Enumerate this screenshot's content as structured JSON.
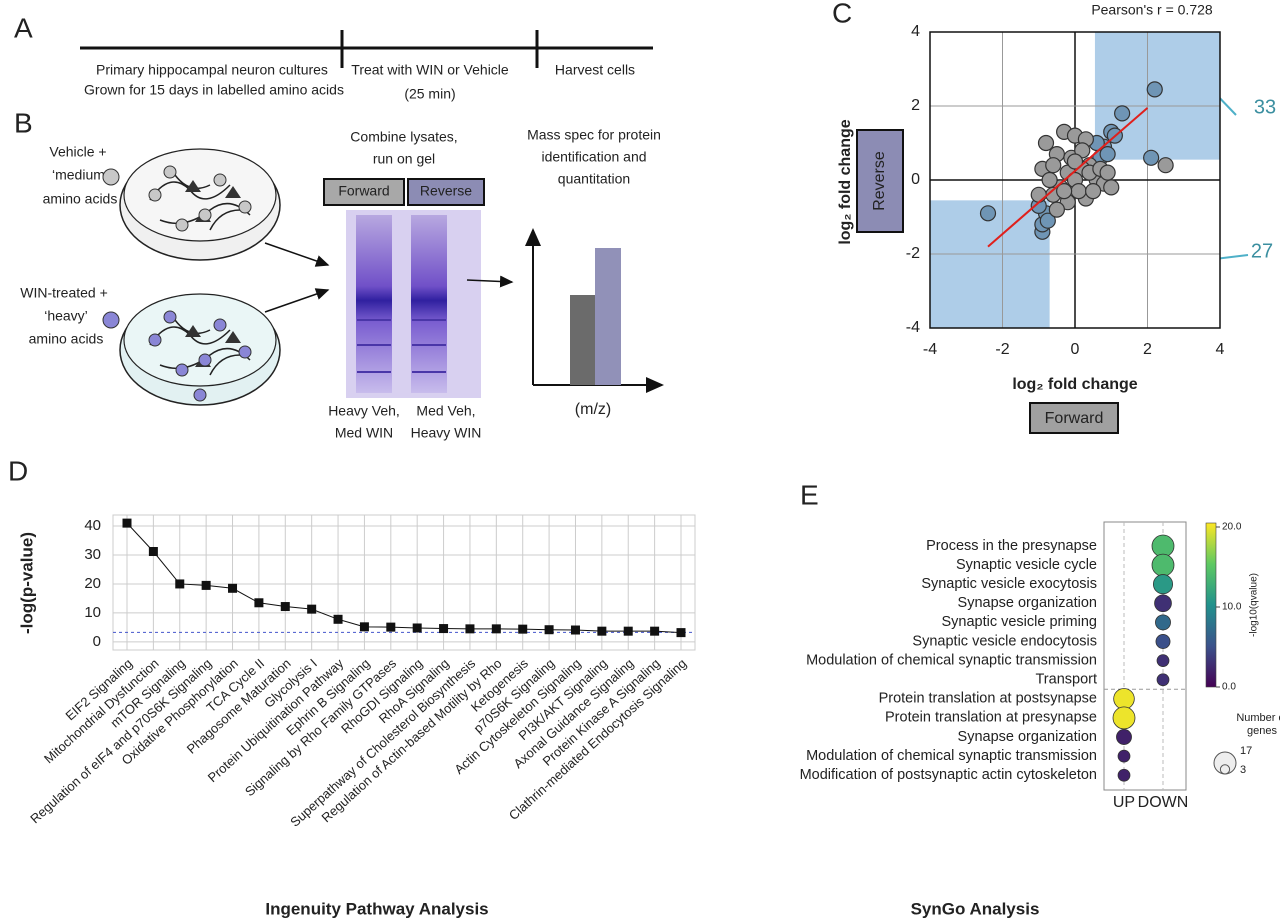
{
  "panel_labels": [
    "A",
    "B",
    "C",
    "D",
    "E"
  ],
  "panel_a": {
    "steps": [
      [
        "Primary hippocampal neuron cultures",
        "Grown for 15 days in labelled amino acids"
      ],
      [
        "Treat with WIN or Vehicle",
        "(25 min)"
      ],
      [
        "Harvest cells"
      ]
    ]
  },
  "panel_b": {
    "vehicle": [
      "Vehicle +",
      "‘medium’",
      "amino acids"
    ],
    "win": [
      "WIN-treated +",
      "‘heavy’",
      "amino acids"
    ],
    "combine": [
      "Combine lysates,",
      "run on gel"
    ],
    "forward": "Forward",
    "reverse": "Reverse",
    "mass_spec": [
      "Mass spec for protein",
      "identification and",
      "quantitation"
    ],
    "mz": "(m/z)",
    "lane1": [
      "Heavy Veh,",
      "Med WIN"
    ],
    "lane2": [
      "Med Veh,",
      "Heavy WIN"
    ]
  },
  "chart_data": [
    {
      "type": "scatter",
      "annotation": "Pearson's r = 0.728",
      "x": [
        2.2,
        1.3,
        2.1,
        2.5,
        1.0,
        0.8,
        1.1,
        0.7,
        0.6,
        0.9,
        -2.4,
        -0.9,
        -0.9,
        -0.8,
        -1.0,
        -0.75,
        -0.8,
        -0.5,
        -0.3,
        0,
        0.3,
        0.4,
        0.2,
        -0.2,
        0,
        -0.4,
        -0.6,
        -0.9,
        -1.0,
        0.6,
        0.8,
        1.0,
        0.3,
        -0.2,
        -0.5,
        0.1,
        0.4,
        -0.1,
        0.7,
        -0.7,
        0.2,
        -0.3,
        0.9,
        -0.6,
        0.0,
        0.5
      ],
      "y": [
        2.45,
        1.8,
        0.6,
        0.4,
        1.3,
        0.9,
        1.2,
        0.6,
        1.0,
        0.7,
        -0.9,
        -1.4,
        -1.2,
        -0.9,
        -0.7,
        -1.1,
        1.0,
        0.7,
        1.3,
        1.2,
        1.1,
        0.4,
        0.3,
        0.2,
        0,
        -0.2,
        -0.4,
        0.3,
        -0.4,
        0.0,
        -0.1,
        -0.2,
        -0.5,
        -0.6,
        -0.8,
        -0.3,
        0.2,
        0.6,
        0.3,
        0.0,
        0.8,
        -0.3,
        0.2,
        0.4,
        0.5,
        -0.3
      ],
      "xlim": [
        -4,
        4
      ],
      "ylim": [
        -4,
        4
      ],
      "xticks": [
        -4,
        -2,
        0,
        2,
        4
      ],
      "yticks": [
        -4,
        -2,
        0,
        2,
        4
      ],
      "grid": true,
      "xlabel": "log₂ fold change",
      "ylabel": "log₂ fold change",
      "x_condition": "Forward",
      "y_condition": "Reverse",
      "regions": [
        {
          "x": [
            0.55,
            4
          ],
          "y": [
            0.55,
            4
          ],
          "count": 33
        },
        {
          "x": [
            -4,
            -0.7
          ],
          "y": [
            -4,
            -0.55
          ],
          "count": 27
        }
      ],
      "fit": {
        "x": [
          -2.4,
          2.0
        ],
        "y": [
          -1.8,
          1.95
        ]
      },
      "point_color": "#9a9a9a",
      "highlight_color": "#6f95b5",
      "region_color": "#aecde8",
      "fit_color": "#e0201c",
      "count_color": "#3b8fa0"
    },
    {
      "type": "line",
      "title": "Ingenuity Pathway Analysis",
      "ylabel": "-log(p-value)",
      "categories": [
        "EIF2 Signaling",
        "Mitochondrial Dysfunction",
        "mTOR Signaling",
        "Regulation of eIF4 and p70S6K Signaling",
        "Oxidative Phosphorylation",
        "TCA Cycle II",
        "Phagosome Maturation",
        "Glycolysis I",
        "Protein Ubiquitination Pathway",
        "Ephrin B Signaling",
        "Signaling by Rho Family GTPases",
        "RhoGDI Signaling",
        "RhoA Signaling",
        "Superpathway of Cholesterol Biosynthesis",
        "Regulation of Actin-based Motility by Rho",
        "Ketogenesis",
        "p70S6K Signaling",
        "Actin Cytoskeleton Signaling",
        "PI3K/AKT Signaling",
        "Axonal Guidance Signaling",
        "Protein Kinase A Signaling",
        "Clathrin-mediated Endocytosis Signaling"
      ],
      "values": [
        41,
        31.2,
        20,
        19.5,
        18.5,
        13.5,
        12.2,
        11.3,
        7.8,
        5.2,
        5.1,
        4.8,
        4.6,
        4.5,
        4.5,
        4.4,
        4.2,
        4.1,
        3.7,
        3.7,
        3.7,
        3.2
      ],
      "ylim": [
        -2.8,
        43.8
      ],
      "yticks": [
        0,
        10,
        20,
        30,
        40
      ],
      "grid": true,
      "color": "#111111",
      "threshold": 3.3,
      "threshold_color": "#4455cc"
    },
    {
      "type": "bubble",
      "title": "SynGo Analysis",
      "categories": [
        "Process in the presynapse",
        "Synaptic vesicle cycle",
        "Synaptic vesicle exocytosis",
        "Synapse organization",
        "Synaptic vesicle priming",
        "Synaptic vesicle endocytosis",
        "Modulation of chemical synaptic transmission",
        "Transport",
        "Protein translation at postsynapse",
        "Protein translation at presynapse",
        "Synapse organization",
        "Modulation of chemical synaptic transmission",
        "Modification of postsynaptic actin cytoskeleton"
      ],
      "series": [
        {
          "name": "UP",
          "values": [
            null,
            null,
            null,
            null,
            null,
            null,
            null,
            null,
            20,
            20,
            2,
            2,
            2
          ],
          "sizes": [
            null,
            null,
            null,
            null,
            null,
            null,
            null,
            null,
            15,
            17,
            8,
            5,
            5
          ]
        },
        {
          "name": "DOWN",
          "values": [
            14,
            14,
            11,
            3,
            7,
            5,
            3,
            3,
            null,
            null,
            null,
            null,
            null
          ],
          "sizes": [
            17,
            17,
            13,
            10,
            8,
            7,
            5,
            5,
            null,
            null,
            null,
            null,
            null
          ]
        }
      ],
      "colorbar": {
        "label": "-log10(qvalue)",
        "lim": [
          0,
          20.5
        ],
        "ticks": [
          {
            "value": 0,
            "label": "0.0"
          },
          {
            "value": 10,
            "label": "10.0"
          },
          {
            "value": 20,
            "label": "20.0"
          }
        ]
      },
      "size_legend": {
        "title": [
          "Number of",
          "genes"
        ],
        "values": [
          17,
          3
        ]
      }
    }
  ]
}
